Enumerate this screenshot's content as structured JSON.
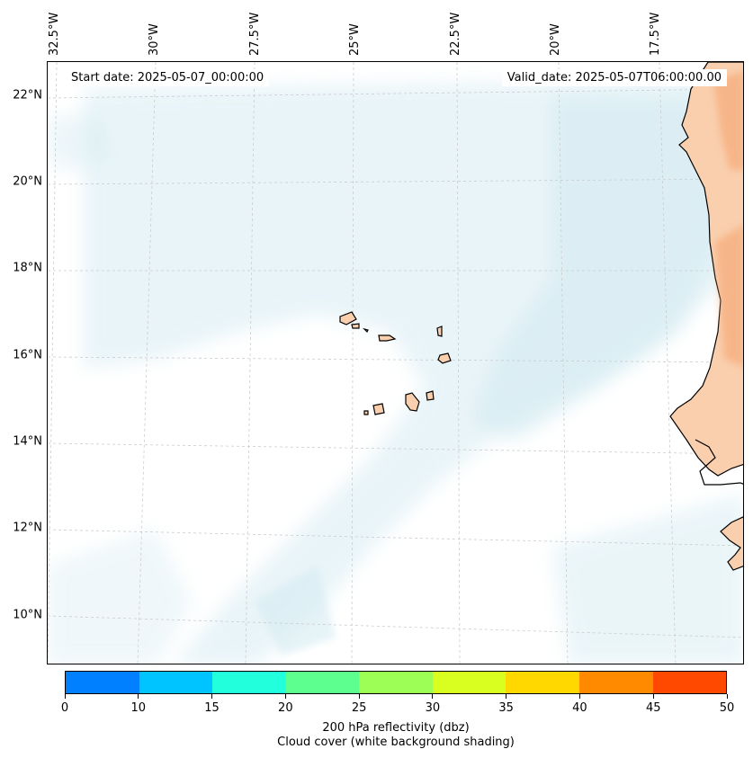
{
  "map": {
    "start_date": "Start date: 2025-05-07_00:00:00",
    "valid_date": "Valid_date: 2025-05-07T06:00:00.00",
    "lon_labels": [
      "32.5°W",
      "30°W",
      "27.5°W",
      "25°W",
      "22.5°W",
      "20°W",
      "17.5°W"
    ],
    "lat_labels": [
      "22°N",
      "20°N",
      "18°N",
      "16°N",
      "14°N",
      "12°N",
      "10°N"
    ],
    "land_color": "#f9cfae",
    "land_hot_color": "#f5a16a",
    "cloud_color": "#cfe8f0"
  },
  "colorbar": {
    "colors": [
      "#007fff",
      "#00c4ff",
      "#22ffdd",
      "#5dff8e",
      "#9dff55",
      "#d8ff20",
      "#ffd800",
      "#ff8a00",
      "#ff4800"
    ],
    "tick_labels": [
      "0",
      "10",
      "15",
      "20",
      "25",
      "30",
      "35",
      "40",
      "45",
      "50"
    ],
    "title_line1": "200 hPa reflectivity (dbz)",
    "title_line2": "Cloud cover (white background shading)"
  }
}
